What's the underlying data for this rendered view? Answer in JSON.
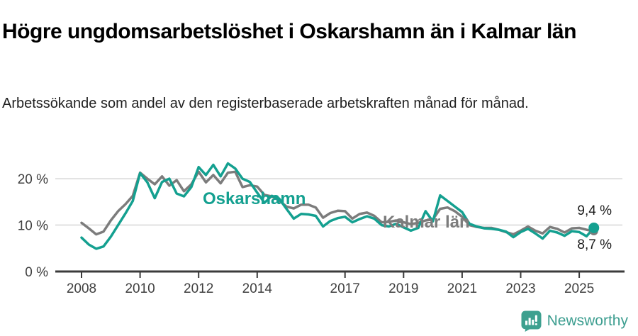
{
  "header": {
    "title": "Högre ungdomsarbetslöshet i Oskarshamn än i Kalmar län",
    "subtitle": "Arbetssökande som andel av den registerbaserade arbetskraften månad för månad."
  },
  "chart_data": {
    "type": "line",
    "title": "Högre ungdomsarbetslöshet i Oskarshamn än i Kalmar län",
    "subtitle": "Arbetssökande som andel av den registerbaserade arbetskraften månad för månad.",
    "xlabel": "",
    "ylabel": "",
    "grid": "horizontal",
    "legend_position": "inline-labels",
    "x_start": 2008,
    "x_step": 0.25,
    "x_end": 2025.5,
    "x_ticks": [
      2008,
      2010,
      2012,
      2014,
      2017,
      2019,
      2021,
      2023,
      2025
    ],
    "y_ticks": [
      0,
      10,
      20
    ],
    "y_tick_suffix": " %",
    "ylim": [
      0,
      24
    ],
    "axis_color": "#3b3b3b",
    "grid_color": "#e1e1e1",
    "tick_label_color": "#404040",
    "series": [
      {
        "name": "Kalmar län",
        "color": "#7c7c7c",
        "end_label": "8,7 %",
        "end_value": 8.7,
        "values": [
          10.5,
          9.3,
          8.0,
          8.6,
          11.0,
          13.0,
          14.5,
          16.3,
          21.3,
          20.0,
          18.8,
          20.5,
          18.5,
          19.7,
          17.3,
          18.8,
          21.5,
          19.2,
          20.8,
          19.0,
          21.3,
          21.5,
          18.2,
          18.6,
          18.3,
          16.5,
          16.2,
          15.3,
          14.0,
          13.6,
          14.4,
          14.4,
          13.8,
          11.6,
          12.6,
          13.1,
          13.0,
          11.4,
          12.4,
          12.7,
          12.0,
          10.6,
          10.7,
          11.0,
          10.6,
          10.2,
          10.5,
          11.0,
          11.2,
          13.5,
          13.8,
          13.0,
          11.8,
          10.0,
          9.6,
          9.4,
          9.4,
          9.0,
          8.5,
          8.0,
          8.8,
          9.7,
          8.8,
          8.2,
          9.6,
          9.2,
          8.4,
          9.3,
          9.4,
          9.0,
          8.7
        ]
      },
      {
        "name": "Oskarshamn",
        "color": "#14a090",
        "end_label": "9,4 %",
        "end_value": 9.4,
        "values": [
          7.3,
          5.8,
          4.9,
          5.4,
          7.5,
          10.0,
          12.5,
          15.2,
          21.2,
          19.2,
          15.8,
          19.3,
          20.0,
          16.8,
          16.2,
          18.2,
          22.5,
          20.8,
          23.0,
          20.5,
          23.3,
          22.2,
          20.0,
          19.3,
          17.0,
          14.8,
          16.3,
          15.7,
          13.5,
          11.4,
          12.4,
          12.3,
          12.0,
          9.7,
          10.9,
          11.5,
          11.8,
          10.6,
          11.3,
          11.9,
          11.4,
          10.0,
          9.7,
          10.3,
          9.5,
          8.8,
          9.4,
          13.0,
          10.8,
          16.4,
          15.2,
          14.0,
          12.8,
          10.3,
          9.7,
          9.3,
          9.2,
          9.0,
          8.6,
          7.4,
          8.5,
          9.2,
          8.2,
          7.1,
          8.8,
          8.4,
          7.7,
          8.7,
          8.5,
          7.6,
          9.4
        ]
      }
    ]
  },
  "footer": {
    "brand": "Newsworthy",
    "logo_color": "#3da08f"
  }
}
